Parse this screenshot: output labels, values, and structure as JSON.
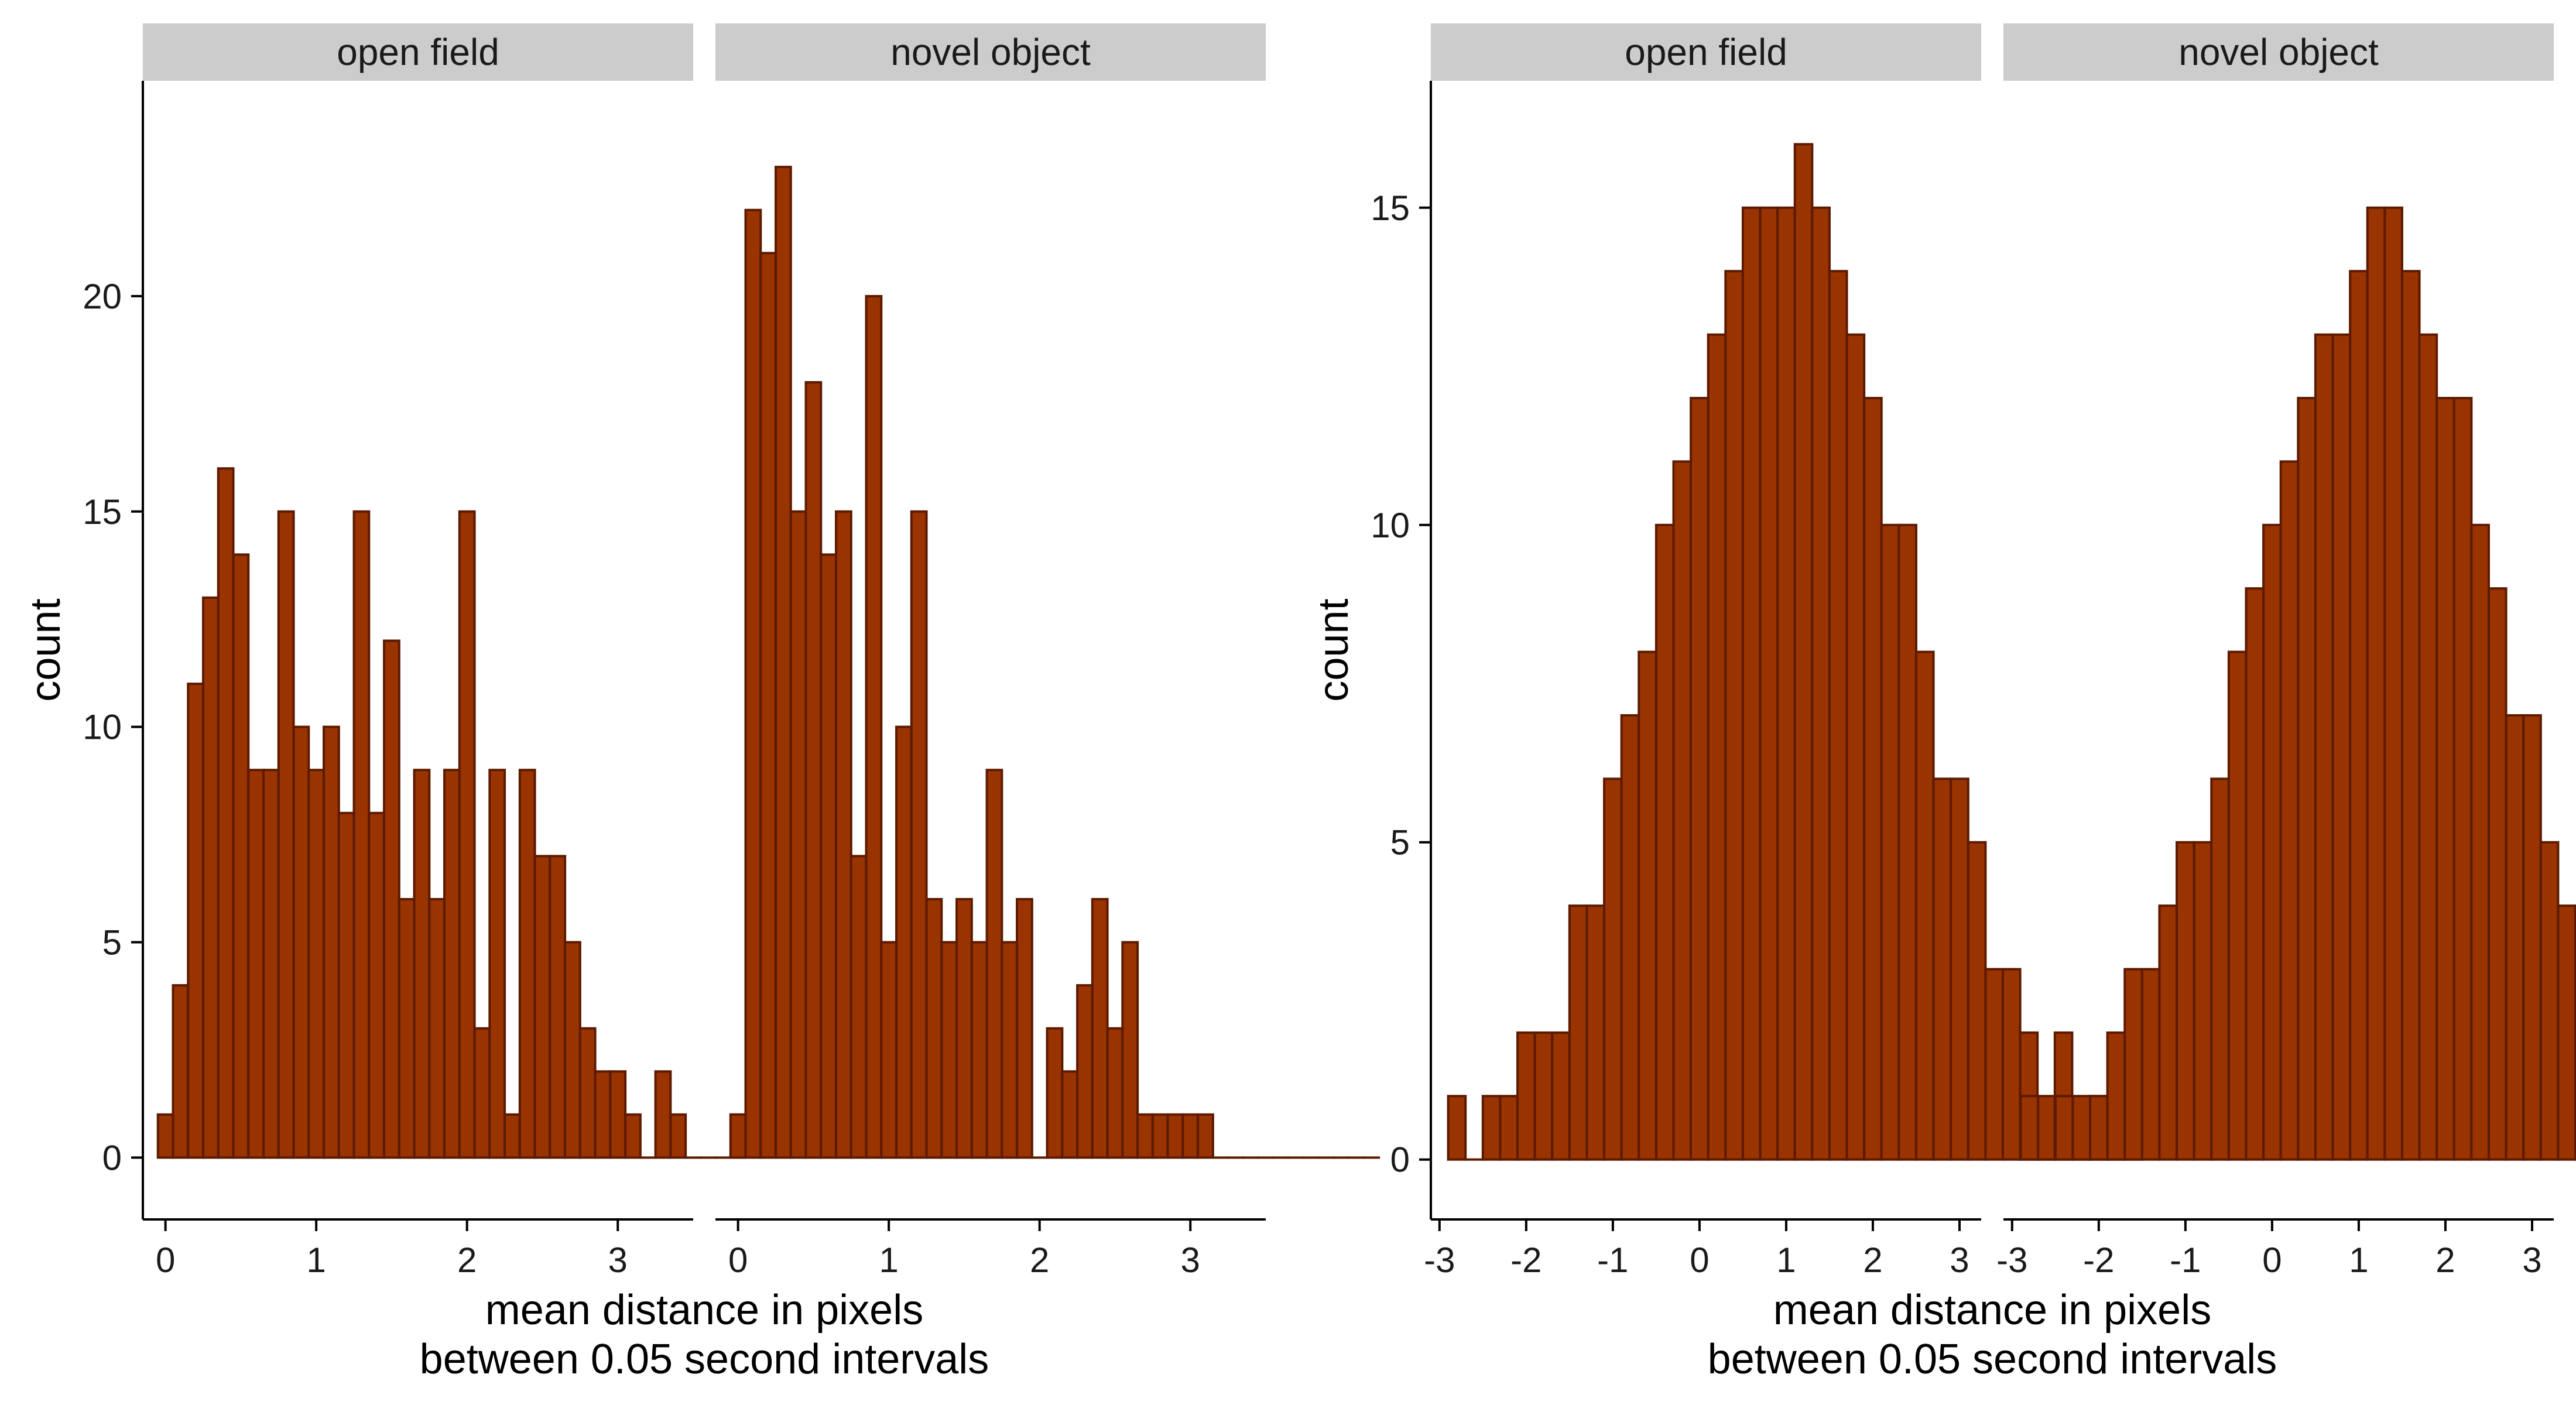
{
  "colors": {
    "bar_fill": "#993300",
    "bar_stroke": "#5c1a00",
    "strip_fill": "#cccccc",
    "axis": "#000000",
    "text": "#1a1a1a"
  },
  "chart_data": [
    {
      "type": "bar",
      "bin_width": 0.1,
      "ylabel": "count",
      "xlabel": [
        "mean distance in pixels",
        "between 0.05 second intervals"
      ],
      "ylim": [
        -1.15,
        25
      ],
      "y_ticks": [
        0,
        5,
        10,
        15,
        20
      ],
      "grid": false,
      "facets": [
        {
          "strip": "open field",
          "xlim": [
            -0.15,
            3.5
          ],
          "x_ticks": [
            0,
            1,
            2,
            3
          ],
          "bin_start": -0.05,
          "values": [
            1,
            4,
            11,
            13,
            16,
            14,
            9,
            9,
            15,
            10,
            9,
            10,
            8,
            15,
            8,
            12,
            6,
            9,
            6,
            9,
            15,
            3,
            9,
            1,
            9,
            7,
            7,
            5,
            3,
            2,
            2,
            1,
            0,
            2,
            1,
            0,
            0,
            0,
            1
          ]
        },
        {
          "strip": "novel object",
          "xlim": [
            -0.15,
            3.5
          ],
          "x_ticks": [
            0,
            1,
            2,
            3
          ],
          "bin_start": -0.05,
          "values": [
            1,
            22,
            21,
            23,
            15,
            18,
            14,
            15,
            7,
            20,
            5,
            10,
            15,
            6,
            5,
            6,
            5,
            9,
            5,
            6,
            0,
            3,
            2,
            4,
            6,
            3,
            5,
            1,
            1,
            1,
            1,
            1,
            0,
            0,
            0,
            0,
            0,
            0,
            0,
            0,
            0,
            0,
            0
          ]
        }
      ]
    },
    {
      "type": "bar",
      "bin_width": 0.2,
      "ylabel": "count",
      "xlabel": [
        "mean distance in pixels",
        "between 0.05 second intervals"
      ],
      "ylim": [
        -0.75,
        17
      ],
      "y_ticks": [
        0,
        5,
        10,
        15
      ],
      "grid": false,
      "facets": [
        {
          "strip": "open field",
          "xlim": [
            -3.1,
            3.25
          ],
          "x_ticks": [
            -3,
            -2,
            -1,
            0,
            1,
            2,
            3
          ],
          "x_tick_labels": [
            "-3",
            "-2",
            "-1",
            "0",
            "1",
            "2",
            "3"
          ],
          "bin_start": -2.9,
          "values": [
            1,
            0,
            1,
            1,
            2,
            2,
            2,
            4,
            4,
            6,
            7,
            8,
            10,
            11,
            12,
            13,
            14,
            15,
            15,
            15,
            16,
            15,
            14,
            13,
            12,
            10,
            10,
            8,
            6,
            6,
            5,
            3,
            3,
            2,
            1,
            2,
            0,
            1,
            0,
            1
          ]
        },
        {
          "strip": "novel object",
          "xlim": [
            -3.1,
            3.25
          ],
          "x_ticks": [
            -3,
            -2,
            -1,
            0,
            1,
            2,
            3
          ],
          "x_tick_labels": [
            "-3",
            "-2",
            "-1",
            "0",
            "1",
            "2",
            "3"
          ],
          "bin_start": -2.9,
          "values": [
            1,
            0,
            1,
            1,
            1,
            2,
            3,
            3,
            4,
            5,
            5,
            6,
            8,
            9,
            10,
            11,
            12,
            13,
            13,
            14,
            15,
            15,
            14,
            13,
            12,
            12,
            10,
            9,
            7,
            7,
            5,
            4,
            4,
            2,
            2,
            1,
            0,
            1,
            0,
            1
          ]
        }
      ]
    }
  ]
}
